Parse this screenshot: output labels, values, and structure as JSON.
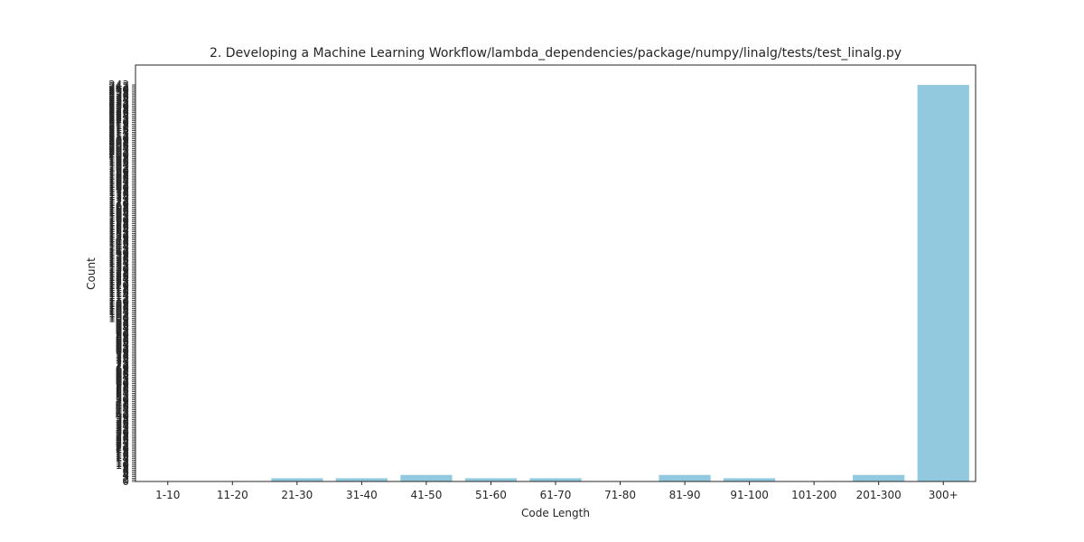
{
  "chart_data": {
    "type": "bar",
    "title": "2. Developing a Machine Learning Workflow/lambda_dependencies/package/numpy/linalg/tests/test_linalg.py",
    "xlabel": "Code Length",
    "ylabel": "Count",
    "categories": [
      "1-10",
      "11-20",
      "21-30",
      "31-40",
      "41-50",
      "51-60",
      "61-70",
      "71-80",
      "81-90",
      "91-100",
      "101-200",
      "201-300",
      "300+"
    ],
    "values": [
      0,
      0,
      2,
      2,
      4,
      2,
      2,
      0,
      4,
      2,
      0,
      4,
      243
    ],
    "ylim": [
      0,
      243
    ],
    "bar_color": "#92c9de",
    "grid": false,
    "legend": "none"
  }
}
